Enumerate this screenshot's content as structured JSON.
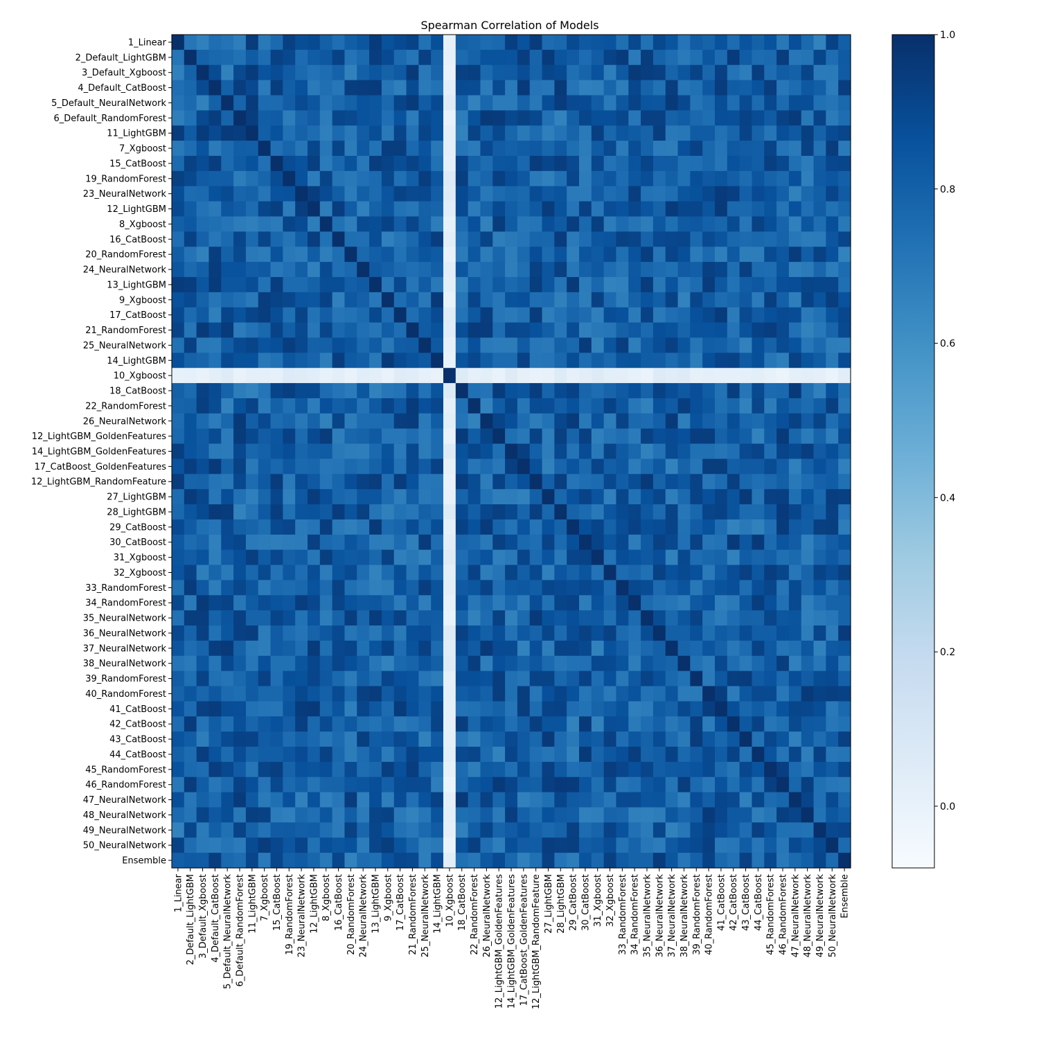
{
  "chart_data": {
    "type": "heatmap",
    "title": "Spearman Correlation of Models",
    "xlabel": "",
    "ylabel": "",
    "labels": [
      "1_Linear",
      "2_Default_LightGBM",
      "3_Default_Xgboost",
      "4_Default_CatBoost",
      "5_Default_NeuralNetwork",
      "6_Default_RandomForest",
      "11_LightGBM",
      "7_Xgboost",
      "15_CatBoost",
      "19_RandomForest",
      "23_NeuralNetwork",
      "12_LightGBM",
      "8_Xgboost",
      "16_CatBoost",
      "20_RandomForest",
      "24_NeuralNetwork",
      "13_LightGBM",
      "9_Xgboost",
      "17_CatBoost",
      "21_RandomForest",
      "25_NeuralNetwork",
      "14_LightGBM",
      "10_Xgboost",
      "18_CatBoost",
      "22_RandomForest",
      "26_NeuralNetwork",
      "12_LightGBM_GoldenFeatures",
      "14_LightGBM_GoldenFeatures",
      "17_CatBoost_GoldenFeatures",
      "12_LightGBM_RandomFeature",
      "27_LightGBM",
      "28_LightGBM",
      "29_CatBoost",
      "30_CatBoost",
      "31_Xgboost",
      "32_Xgboost",
      "33_RandomForest",
      "34_RandomForest",
      "35_NeuralNetwork",
      "36_NeuralNetwork",
      "37_NeuralNetwork",
      "38_NeuralNetwork",
      "39_RandomForest",
      "40_RandomForest",
      "41_CatBoost",
      "42_CatBoost",
      "43_CatBoost",
      "44_CatBoost",
      "45_RandomForest",
      "46_RandomForest",
      "47_NeuralNetwork",
      "48_NeuralNetwork",
      "49_NeuralNetwork",
      "50_NeuralNetwork",
      "Ensemble"
    ],
    "colormap": "Blues",
    "vmin": -0.08,
    "vmax": 1.0,
    "colorbar_ticks": [
      "0.0",
      "0.2",
      "0.4",
      "0.6",
      "0.8",
      "1.0"
    ],
    "diagonal_value": 1.0,
    "off_diagonal_typical": 0.8,
    "values_note": ""
  }
}
